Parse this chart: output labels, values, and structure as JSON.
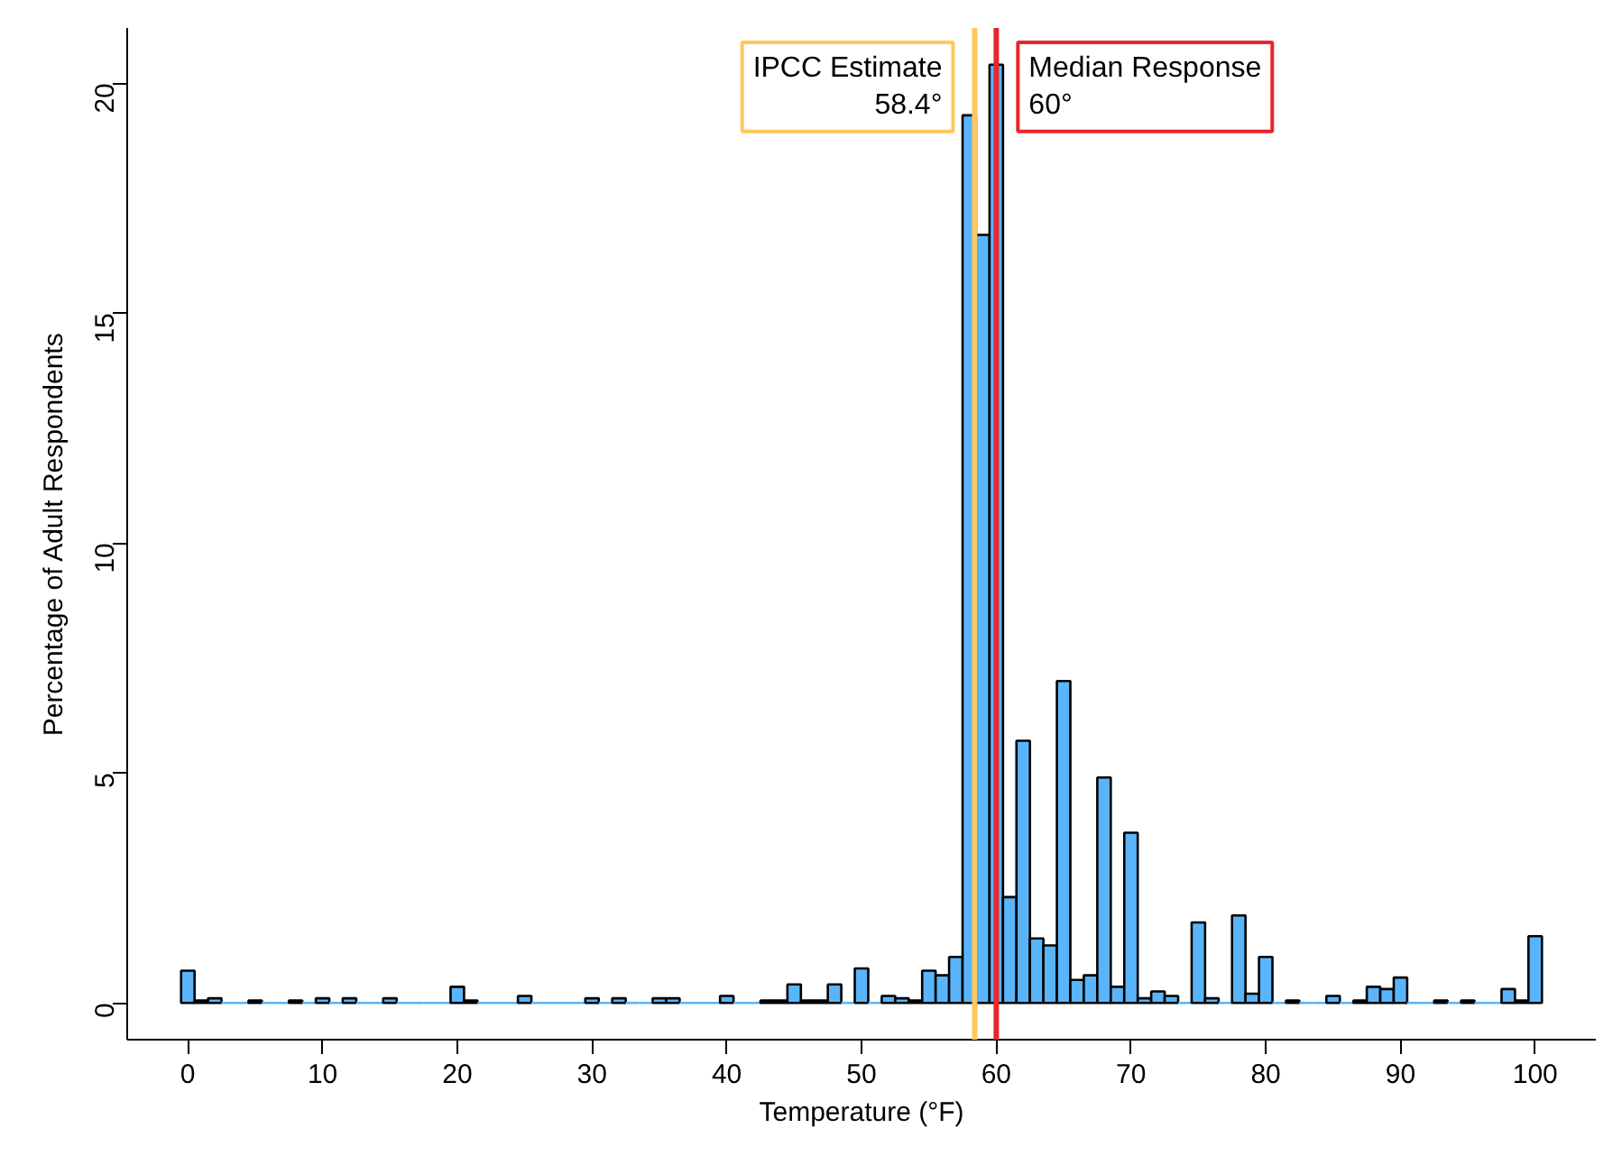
{
  "chart_data": {
    "type": "histogram",
    "xlabel": "Temperature (°F)",
    "ylabel": "Percentage of Adult Respondents",
    "bins": [
      -0.5,
      0.5,
      1.5,
      2.5,
      3.5,
      4.5,
      5.5,
      6.5,
      7.5,
      8.5,
      9.5,
      10.5,
      11.5,
      12.5,
      13.5,
      14.5,
      15.5,
      16.5,
      17.5,
      18.5,
      19.5,
      20.5,
      21.5,
      22.5,
      23.5,
      24.5,
      25.5,
      26.5,
      27.5,
      28.5,
      29.5,
      30.5,
      31.5,
      32.5,
      33.5,
      34.5,
      35.5,
      36.5,
      37.5,
      38.5,
      39.5,
      40.5,
      41.5,
      42.5,
      43.5,
      44.5,
      45.5,
      46.5,
      47.5,
      48.5,
      49.5,
      50.5,
      51.5,
      52.5,
      53.5,
      54.5,
      55.5,
      56.5,
      57.5,
      58.5,
      59.5,
      60.5,
      61.5,
      62.5,
      63.5,
      64.5,
      65.5,
      66.5,
      67.5,
      68.5,
      69.5,
      70.5,
      71.5,
      72.5,
      73.5,
      74.5,
      75.5,
      76.5,
      77.5,
      78.5,
      79.5,
      80.5,
      81.5,
      82.5,
      83.5,
      84.5,
      85.5,
      86.5,
      87.5,
      88.5,
      89.5,
      90.5,
      91.5,
      92.5,
      93.5,
      94.5,
      95.5,
      96.5,
      97.5,
      98.5,
      99.5,
      100.5
    ],
    "values": [
      0.7,
      0.05,
      0.1,
      0,
      0,
      0.05,
      0,
      0,
      0.05,
      0,
      0.1,
      0,
      0.1,
      0,
      0,
      0.1,
      0,
      0,
      0,
      0,
      0.35,
      0.05,
      0,
      0,
      0,
      0.15,
      0,
      0,
      0,
      0,
      0.1,
      0,
      0.1,
      0,
      0,
      0.1,
      0.1,
      0,
      0,
      0,
      0.15,
      0,
      0,
      0.05,
      0.05,
      0.4,
      0.05,
      0.05,
      0.4,
      0,
      0.75,
      0,
      0.15,
      0.1,
      0.05,
      0.7,
      0.6,
      1.0,
      19.3,
      16.7,
      20.4,
      2.3,
      5.7,
      1.4,
      1.25,
      7.0,
      0.5,
      0.6,
      4.9,
      0.35,
      3.7,
      0.1,
      0.25,
      0.15,
      0,
      1.75,
      0.1,
      0,
      1.9,
      0.2,
      1.0,
      0,
      0.05,
      0,
      0,
      0.15,
      0,
      0.05,
      0.35,
      0.3,
      0.55,
      0,
      0,
      0.05,
      0,
      0.05,
      0,
      0,
      0.3,
      0.05,
      1.45
    ],
    "color": "#5ab4fa",
    "xlim": [
      -4.5,
      104.5
    ],
    "ylim": [
      -0.8,
      21.2
    ],
    "xticks": [
      0,
      10,
      20,
      30,
      40,
      50,
      60,
      70,
      80,
      90,
      100
    ],
    "yticks": [
      0,
      5,
      10,
      15,
      20
    ],
    "grid": false,
    "ref_lines": [
      {
        "axis": "x",
        "value": 58.4,
        "label": "IPCC Estimate\n58.4°",
        "color": "#fdc75e"
      },
      {
        "axis": "x",
        "value": 60,
        "label": "Median Response\n60°",
        "color": "#e8262b"
      }
    ]
  }
}
